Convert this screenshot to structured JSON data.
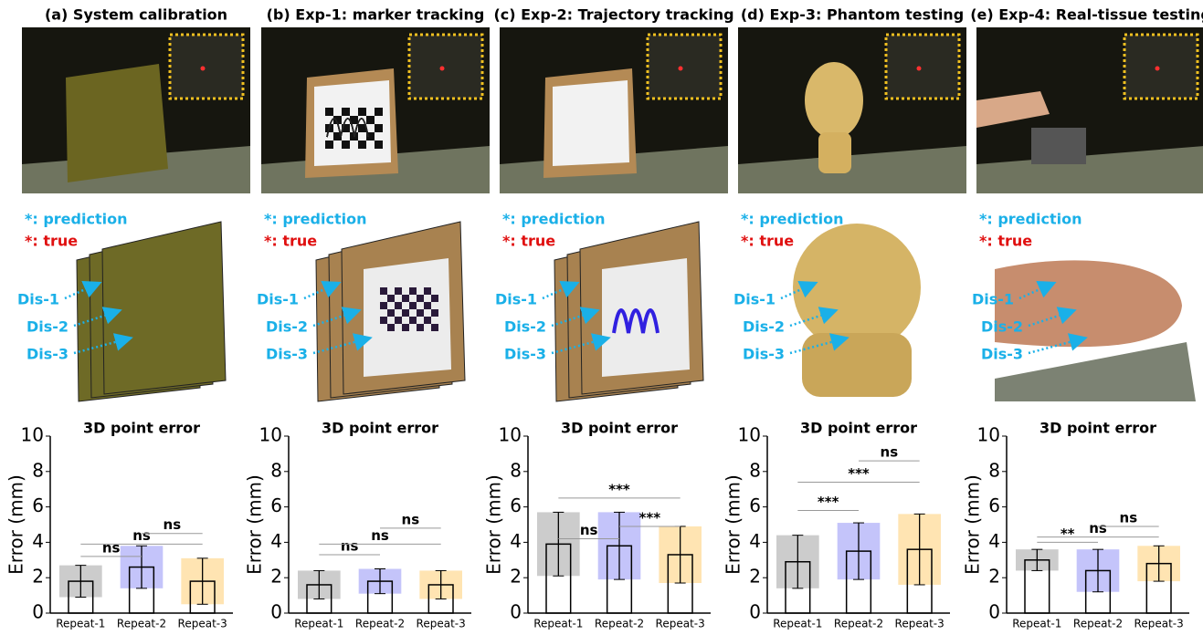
{
  "panels": [
    {
      "title": "(a) System calibration",
      "prediction_label": "*: prediction",
      "true_label": "*: true",
      "distances": [
        "Dis-1",
        "Dis-2",
        "Dis-3"
      ]
    },
    {
      "title": "(b) Exp-1: marker tracking",
      "prediction_label": "*: prediction",
      "true_label": "*: true",
      "distances": [
        "Dis-1",
        "Dis-2",
        "Dis-3"
      ]
    },
    {
      "title": "(c) Exp-2: Trajectory tracking",
      "prediction_label": "*: prediction",
      "true_label": "*: true",
      "distances": [
        "Dis-1",
        "Dis-2",
        "Dis-3"
      ]
    },
    {
      "title": "(d) Exp-3: Phantom testing",
      "prediction_label": "*: prediction",
      "true_label": "*: true",
      "distances": [
        "Dis-1",
        "Dis-2",
        "Dis-3"
      ]
    },
    {
      "title": "(e) Exp-4: Real-tissue testing",
      "prediction_label": "*: prediction",
      "true_label": "*: true",
      "distances": [
        "Dis-1",
        "Dis-2",
        "Dis-3"
      ]
    }
  ],
  "chart_data": [
    {
      "type": "bar",
      "title": "3D point error",
      "y_label": "Error (mm)",
      "categories": [
        "Repeat-1",
        "Repeat-2",
        "Repeat-3"
      ],
      "values": [
        1.8,
        2.6,
        1.8
      ],
      "errors": [
        0.9,
        1.2,
        1.3
      ],
      "colors": [
        "#555555",
        "#3a3aee",
        "#ffa500"
      ],
      "ylim": [
        0,
        10
      ],
      "yticks": [
        0,
        2,
        4,
        6,
        8,
        10
      ],
      "brackets": [
        {
          "between": [
            "Repeat-1",
            "Repeat-2"
          ],
          "y": 3.2,
          "label": "ns"
        },
        {
          "between": [
            "Repeat-1",
            "Repeat-3"
          ],
          "y": 3.9,
          "label": "ns"
        },
        {
          "between": [
            "Repeat-2",
            "Repeat-3"
          ],
          "y": 4.5,
          "label": "ns"
        }
      ]
    },
    {
      "type": "bar",
      "title": "3D point error",
      "y_label": "Error (mm)",
      "categories": [
        "Repeat-1",
        "Repeat-2",
        "Repeat-3"
      ],
      "values": [
        1.6,
        1.8,
        1.6
      ],
      "errors": [
        0.8,
        0.7,
        0.8
      ],
      "colors": [
        "#555555",
        "#3a3aee",
        "#ffa500"
      ],
      "ylim": [
        0,
        10
      ],
      "yticks": [
        0,
        2,
        4,
        6,
        8,
        10
      ],
      "brackets": [
        {
          "between": [
            "Repeat-1",
            "Repeat-2"
          ],
          "y": 3.3,
          "label": "ns"
        },
        {
          "between": [
            "Repeat-1",
            "Repeat-3"
          ],
          "y": 3.9,
          "label": "ns"
        },
        {
          "between": [
            "Repeat-2",
            "Repeat-3"
          ],
          "y": 4.8,
          "label": "ns"
        }
      ]
    },
    {
      "type": "bar",
      "title": "3D point error",
      "y_label": "Error (mm)",
      "categories": [
        "Repeat-1",
        "Repeat-2",
        "Repeat-3"
      ],
      "values": [
        3.9,
        3.8,
        3.3
      ],
      "errors": [
        1.8,
        1.9,
        1.6
      ],
      "colors": [
        "#555555",
        "#3a3aee",
        "#ffa500"
      ],
      "ylim": [
        0,
        10
      ],
      "yticks": [
        0,
        2,
        4,
        6,
        8,
        10
      ],
      "brackets": [
        {
          "between": [
            "Repeat-1",
            "Repeat-2"
          ],
          "y": 4.2,
          "label": "ns"
        },
        {
          "between": [
            "Repeat-2",
            "Repeat-3"
          ],
          "y": 4.9,
          "label": "***"
        },
        {
          "between": [
            "Repeat-1",
            "Repeat-3"
          ],
          "y": 6.5,
          "label": "***"
        }
      ]
    },
    {
      "type": "bar",
      "title": "3D point error",
      "y_label": "Error (mm)",
      "categories": [
        "Repeat-1",
        "Repeat-2",
        "Repeat-3"
      ],
      "values": [
        2.9,
        3.5,
        3.6
      ],
      "errors": [
        1.5,
        1.6,
        2.0
      ],
      "colors": [
        "#555555",
        "#3a3aee",
        "#ffa500"
      ],
      "ylim": [
        0,
        10
      ],
      "yticks": [
        0,
        2,
        4,
        6,
        8,
        10
      ],
      "brackets": [
        {
          "between": [
            "Repeat-1",
            "Repeat-2"
          ],
          "y": 5.8,
          "label": "***"
        },
        {
          "between": [
            "Repeat-1",
            "Repeat-3"
          ],
          "y": 7.4,
          "label": "***"
        },
        {
          "between": [
            "Repeat-2",
            "Repeat-3"
          ],
          "y": 8.6,
          "label": "ns"
        }
      ]
    },
    {
      "type": "bar",
      "title": "3D point error",
      "y_label": "Error (mm)",
      "categories": [
        "Repeat-1",
        "Repeat-2",
        "Repeat-3"
      ],
      "values": [
        3.0,
        2.4,
        2.8
      ],
      "errors": [
        0.6,
        1.2,
        1.0
      ],
      "colors": [
        "#555555",
        "#3a3aee",
        "#ffa500"
      ],
      "ylim": [
        0,
        10
      ],
      "yticks": [
        0,
        2,
        4,
        6,
        8,
        10
      ],
      "brackets": [
        {
          "between": [
            "Repeat-1",
            "Repeat-2"
          ],
          "y": 4.0,
          "label": "**"
        },
        {
          "between": [
            "Repeat-1",
            "Repeat-3"
          ],
          "y": 4.3,
          "label": "ns"
        },
        {
          "between": [
            "Repeat-2",
            "Repeat-3"
          ],
          "y": 4.9,
          "label": "ns"
        }
      ]
    }
  ]
}
